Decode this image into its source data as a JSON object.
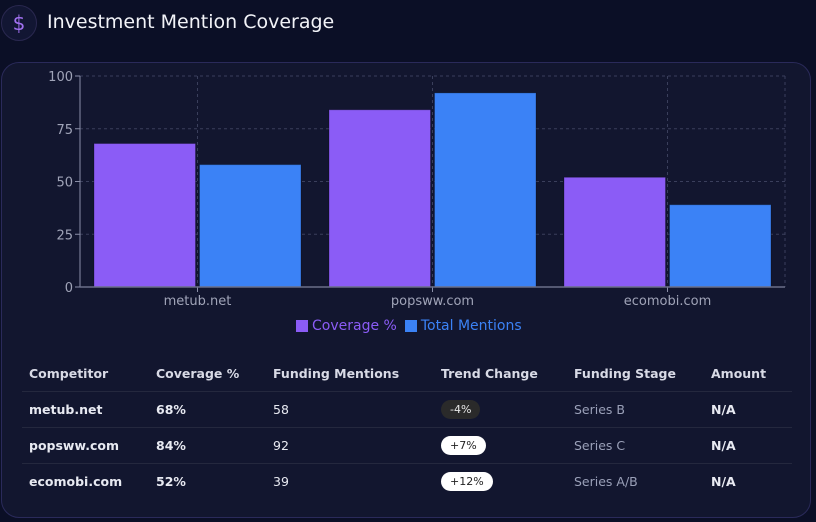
{
  "header": {
    "icon": "dollar-icon",
    "icon_glyph": "$",
    "title": "Investment Mention Coverage"
  },
  "chart_data": {
    "type": "bar",
    "title": "",
    "xlabel": "",
    "ylabel": "",
    "categories": [
      "metub.net",
      "popsww.com",
      "ecomobi.com"
    ],
    "series": [
      {
        "name": "Coverage %",
        "values": [
          68,
          84,
          52
        ],
        "color": "#8b5cf6"
      },
      {
        "name": "Total Mentions",
        "values": [
          58,
          92,
          39
        ],
        "color": "#3b82f6"
      }
    ],
    "ylim": [
      0,
      100
    ],
    "yticks": [
      0,
      25,
      50,
      75,
      100
    ],
    "grid": true,
    "legend": "bottom-center"
  },
  "legend": [
    {
      "label": "Coverage %",
      "color": "#8b5cf6"
    },
    {
      "label": "Total Mentions",
      "color": "#3b82f6"
    }
  ],
  "table": {
    "headers": [
      "Competitor",
      "Coverage %",
      "Funding Mentions",
      "Trend Change",
      "Funding Stage",
      "Amount"
    ],
    "rows": [
      {
        "competitor": "metub.net",
        "coverage": "68%",
        "mentions": "58",
        "trend": "-4%",
        "trend_dir": "neg",
        "stage": "Series B",
        "amount": "N/A"
      },
      {
        "competitor": "popsww.com",
        "coverage": "84%",
        "mentions": "92",
        "trend": "+7%",
        "trend_dir": "pos",
        "stage": "Series C",
        "amount": "N/A"
      },
      {
        "competitor": "ecomobi.com",
        "coverage": "52%",
        "mentions": "39",
        "trend": "+12%",
        "trend_dir": "pos",
        "stage": "Series A/B",
        "amount": "N/A"
      }
    ]
  }
}
